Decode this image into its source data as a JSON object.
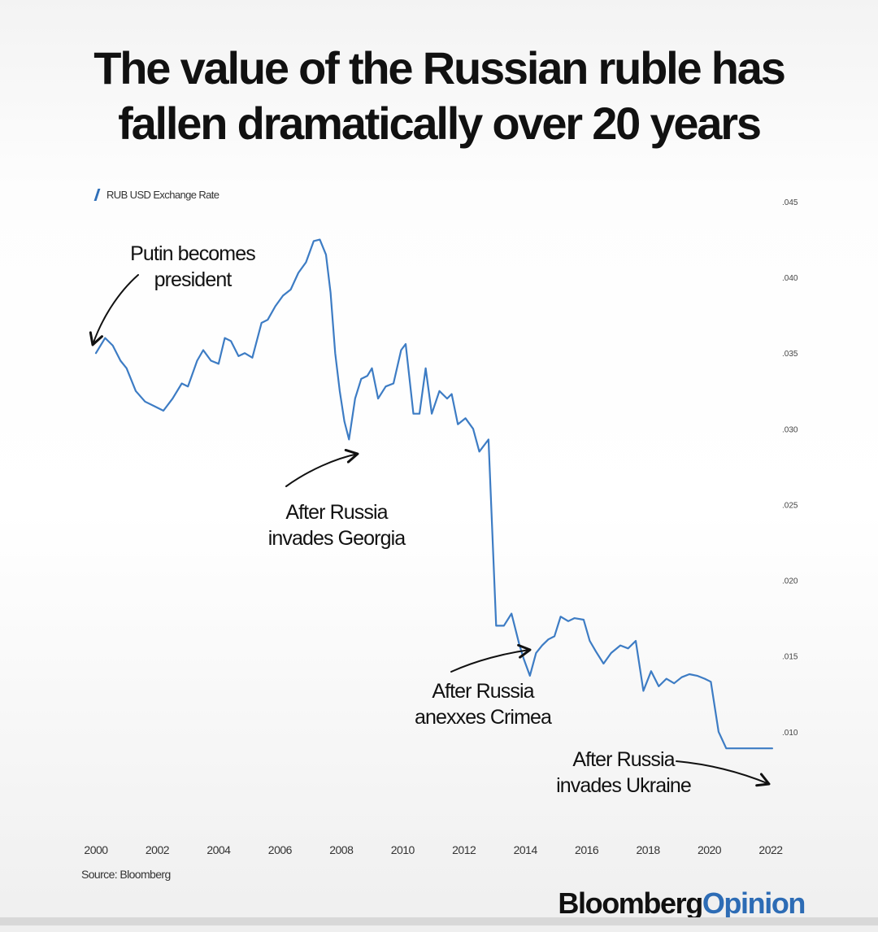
{
  "chart_data": {
    "type": "line",
    "title": "The value of the Russian ruble has fallen dramatically over 20 years",
    "xlabel": "",
    "ylabel": "",
    "xlim": [
      2000,
      2022
    ],
    "ylim": [
      0.008,
      0.045
    ],
    "x_ticks": [
      "2000",
      "2002",
      "2004",
      "2006",
      "2008",
      "2010",
      "2012",
      "2014",
      "2016",
      "2018",
      "2020",
      "2022"
    ],
    "y_ticks": [
      ".045",
      ".040",
      ".035",
      ".030",
      ".025",
      ".020",
      ".015",
      ".010"
    ],
    "y_axis_position": "right",
    "grid": false,
    "legend_position": "top-left",
    "series": [
      {
        "name": "RUB USD Exchange Rate",
        "color": "#3d7cc4",
        "x": [
          2000.0,
          2000.3,
          2000.55,
          2000.8,
          2001.0,
          2001.3,
          2001.6,
          2001.9,
          2002.2,
          2002.5,
          2002.8,
          2003.0,
          2003.3,
          2003.5,
          2003.75,
          2004.0,
          2004.2,
          2004.4,
          2004.65,
          2004.85,
          2005.1,
          2005.4,
          2005.6,
          2005.85,
          2006.1,
          2006.35,
          2006.6,
          2006.85,
          2007.1,
          2007.3,
          2007.5,
          2007.65,
          2007.8,
          2007.95,
          2008.1,
          2008.25,
          2008.45,
          2008.65,
          2008.85,
          2009.0,
          2009.2,
          2009.45,
          2009.7,
          2009.95,
          2010.1,
          2010.35,
          2010.55,
          2010.75,
          2010.95,
          2011.2,
          2011.45,
          2011.6,
          2011.8,
          2012.05,
          2012.3,
          2012.5,
          2012.8,
          2013.05,
          2013.3,
          2013.55,
          2013.8,
          2013.95,
          2014.15,
          2014.35,
          2014.55,
          2014.75,
          2014.95,
          2015.15,
          2015.4,
          2015.6,
          2015.9,
          2016.1,
          2016.3,
          2016.55,
          2016.8,
          2017.1,
          2017.35,
          2017.6,
          2017.85,
          2018.1,
          2018.35,
          2018.6,
          2018.85,
          2019.1,
          2019.35,
          2019.6,
          2019.85,
          2020.05,
          2020.3,
          2020.55,
          2020.8,
          2021.05,
          2021.3,
          2021.55,
          2021.75,
          2021.95,
          2022.05
        ],
        "values": [
          0.035,
          0.036,
          0.0355,
          0.0345,
          0.034,
          0.0325,
          0.0318,
          0.0315,
          0.0312,
          0.032,
          0.033,
          0.0328,
          0.0345,
          0.0352,
          0.0345,
          0.0343,
          0.036,
          0.0358,
          0.0348,
          0.035,
          0.0347,
          0.037,
          0.0372,
          0.0381,
          0.0388,
          0.0392,
          0.0403,
          0.041,
          0.0424,
          0.0425,
          0.0415,
          0.039,
          0.035,
          0.0325,
          0.0305,
          0.0293,
          0.032,
          0.0333,
          0.0335,
          0.034,
          0.032,
          0.0328,
          0.033,
          0.0352,
          0.0356,
          0.031,
          0.031,
          0.034,
          0.031,
          0.0325,
          0.032,
          0.0323,
          0.0303,
          0.0307,
          0.03,
          0.0285,
          0.0293,
          0.017,
          0.017,
          0.0178,
          0.0158,
          0.0148,
          0.0137,
          0.0152,
          0.0157,
          0.0161,
          0.0163,
          0.0176,
          0.0173,
          0.0175,
          0.0174,
          0.016,
          0.0153,
          0.0145,
          0.0152,
          0.0157,
          0.0155,
          0.016,
          0.0127,
          0.014,
          0.013,
          0.0135,
          0.0132,
          0.0136,
          0.0138,
          0.0137,
          0.0135,
          0.0133,
          0.01,
          0.0089,
          0.0089,
          0.0089,
          0.0089,
          0.0089,
          0.0089,
          0.0089,
          0.0089
        ]
      }
    ],
    "annotations": [
      {
        "lines": [
          "Putin becomes",
          "president"
        ],
        "target": [
          2000.0,
          0.0356
        ]
      },
      {
        "lines": [
          "After Russia",
          "invades Georgia"
        ],
        "target": [
          2008.25,
          0.0293
        ]
      },
      {
        "lines": [
          "After Russia",
          "anexxes Crimea"
        ],
        "target": [
          2013.3,
          0.0176
        ]
      },
      {
        "lines": [
          "After Russia",
          "invades Ukraine"
        ],
        "target": [
          2021.75,
          0.0089
        ]
      }
    ]
  },
  "legend_label": "RUB USD Exchange Rate",
  "source": "Source: Bloomberg",
  "brand": {
    "primary": "Bloomberg",
    "accent": "Opinion"
  },
  "colors": {
    "line": "#3d7cc4",
    "brand_accent": "#2d6cb5"
  }
}
